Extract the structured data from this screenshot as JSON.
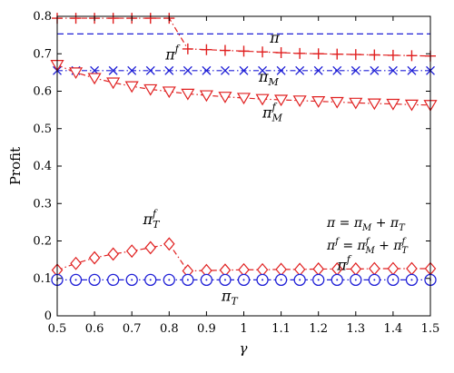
{
  "chart_data": {
    "type": "line",
    "xlabel": "γ",
    "ylabel": "Profit",
    "xlim": [
      0.5,
      1.5
    ],
    "ylim": [
      0,
      0.8
    ],
    "xticks": [
      "0.5",
      "0.6",
      "0.7",
      "0.8",
      "0.9",
      "1",
      "1.1",
      "1.2",
      "1.3",
      "1.4",
      "1.5"
    ],
    "yticks": [
      "0",
      "0.1",
      "0.2",
      "0.3",
      "0.4",
      "0.5",
      "0.6",
      "0.7",
      "0.8"
    ],
    "grid": false,
    "x": [
      0.5,
      0.55,
      0.6,
      0.65,
      0.7,
      0.75,
      0.8,
      0.85,
      0.9,
      0.95,
      1.0,
      1.05,
      1.1,
      1.15,
      1.2,
      1.25,
      1.3,
      1.35,
      1.4,
      1.45,
      1.5
    ],
    "series": [
      {
        "id": "pi",
        "color": "#1f1fd6",
        "line": "dashed",
        "marker": "none",
        "values": [
          0.753,
          0.753,
          0.753,
          0.753,
          0.753,
          0.753,
          0.753,
          0.753,
          0.753,
          0.753,
          0.753,
          0.753,
          0.753,
          0.753,
          0.753,
          0.753,
          0.753,
          0.753,
          0.753,
          0.753,
          0.753
        ]
      },
      {
        "id": "pi_f",
        "color": "#e02020",
        "line": "dashdot",
        "marker": "plus",
        "values": [
          0.795,
          0.795,
          0.795,
          0.795,
          0.795,
          0.795,
          0.795,
          0.713,
          0.711,
          0.709,
          0.707,
          0.705,
          0.703,
          0.701,
          0.7,
          0.699,
          0.698,
          0.697,
          0.696,
          0.695,
          0.694
        ]
      },
      {
        "id": "pi_M",
        "color": "#1f1fd6",
        "line": "dashdot",
        "marker": "x",
        "values": [
          0.655,
          0.655,
          0.655,
          0.655,
          0.655,
          0.655,
          0.655,
          0.655,
          0.655,
          0.655,
          0.655,
          0.655,
          0.655,
          0.655,
          0.655,
          0.655,
          0.655,
          0.655,
          0.655,
          0.655,
          0.655
        ]
      },
      {
        "id": "pi_M_f",
        "color": "#e02020",
        "line": "dashdot",
        "marker": "triangle-down",
        "values": [
          0.67,
          0.65,
          0.635,
          0.623,
          0.613,
          0.605,
          0.599,
          0.593,
          0.589,
          0.585,
          0.582,
          0.579,
          0.577,
          0.575,
          0.573,
          0.571,
          0.569,
          0.567,
          0.566,
          0.564,
          0.563
        ]
      },
      {
        "id": "pi_T_f",
        "color": "#e02020",
        "line": "dashdot",
        "marker": "diamond",
        "values": [
          0.122,
          0.14,
          0.155,
          0.165,
          0.173,
          0.182,
          0.192,
          0.12,
          0.121,
          0.122,
          0.123,
          0.123,
          0.124,
          0.124,
          0.125,
          0.125,
          0.125,
          0.126,
          0.126,
          0.126,
          0.126
        ]
      },
      {
        "id": "pi_T",
        "color": "#1f1fd6",
        "line": "dashdot",
        "marker": "circle",
        "values": [
          0.096,
          0.096,
          0.096,
          0.096,
          0.096,
          0.096,
          0.096,
          0.096,
          0.096,
          0.096,
          0.096,
          0.096,
          0.096,
          0.096,
          0.096,
          0.096,
          0.096,
          0.096,
          0.096,
          0.096,
          0.096
        ]
      }
    ],
    "annotations": [
      {
        "id": "ann-pi",
        "main": "π",
        "sup": "",
        "sub": "",
        "x": 1.07,
        "y": 0.73
      },
      {
        "id": "ann-pi-f",
        "main": "π",
        "sup": "f",
        "sub": "",
        "x": 0.79,
        "y": 0.685
      },
      {
        "id": "ann-pi-M",
        "main": "π",
        "sup": "",
        "sub": "M",
        "x": 1.04,
        "y": 0.625
      },
      {
        "id": "ann-pi-M-f",
        "main": "π",
        "sup": "f",
        "sub": "M",
        "x": 1.05,
        "y": 0.53
      },
      {
        "id": "ann-pi-T-f",
        "main": "π",
        "sup": "f",
        "sub": "T",
        "x": 0.73,
        "y": 0.245
      },
      {
        "id": "ann-pi-f-low",
        "main": "π",
        "sup": "f",
        "sub": "",
        "x": 1.25,
        "y": 0.122
      },
      {
        "id": "ann-pi-T",
        "main": "π",
        "sup": "",
        "sub": "T",
        "x": 0.94,
        "y": 0.04
      }
    ],
    "equations": [
      "π = πM + πT",
      "πf = πfM + πfT"
    ]
  }
}
